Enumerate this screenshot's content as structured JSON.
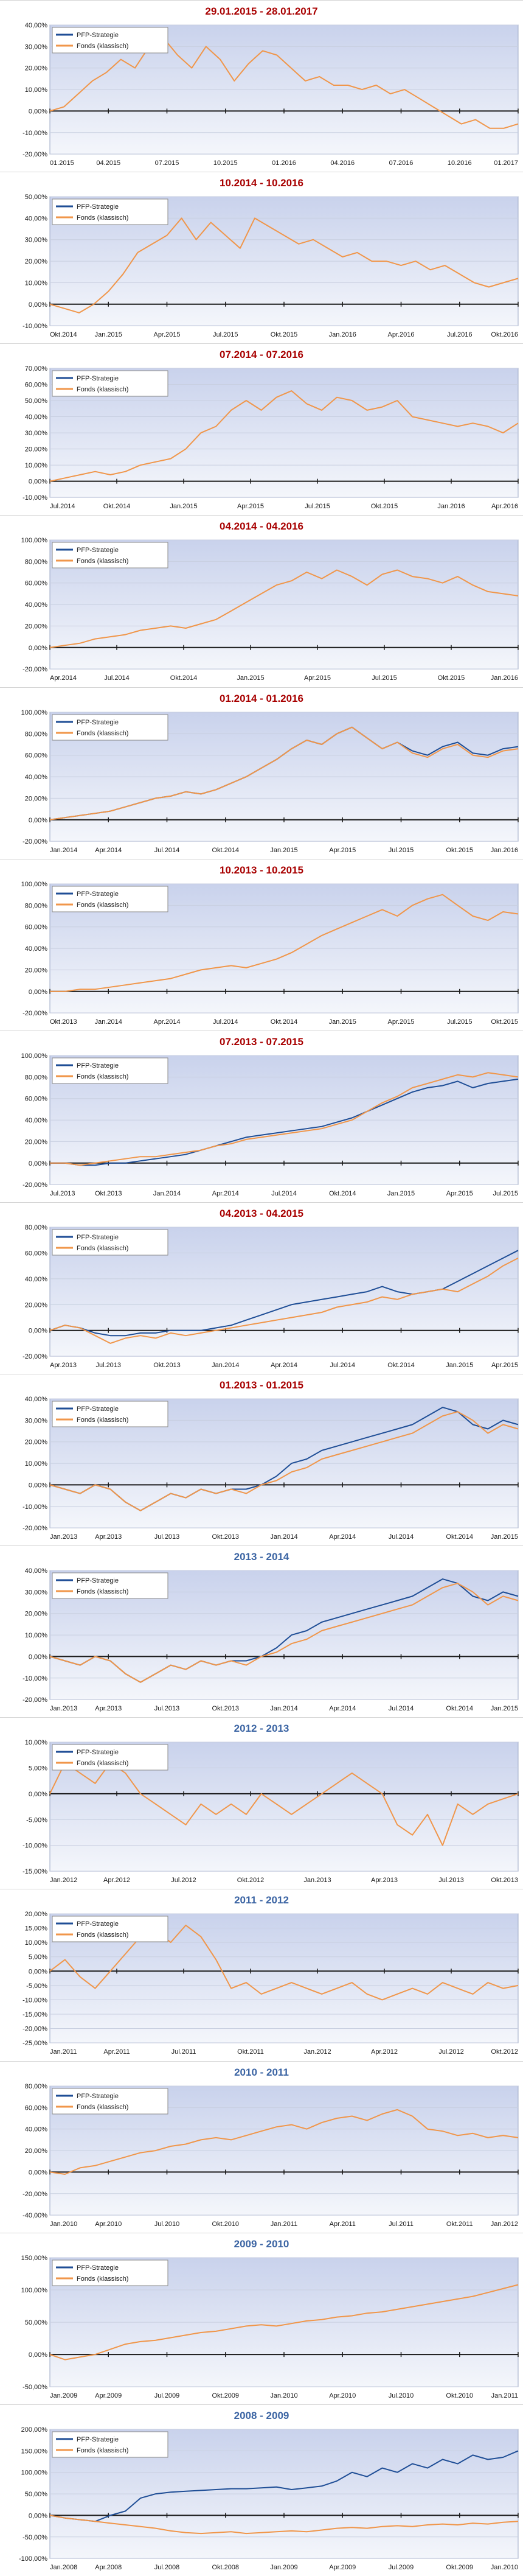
{
  "colors": {
    "recent_title": "#a80000",
    "year_title": "#3b64a3",
    "pfp": "#1f4e96",
    "fonds": "#f0964a",
    "plot_top": "#c9d2ec",
    "plot_bottom": "#f4f6fb"
  },
  "legend_labels": [
    "PFP-Strategie",
    "Fonds (klassisch)"
  ],
  "charts": [
    {
      "title": "29.01.2015 - 28.01.2017",
      "title_kind": "recent",
      "type": "line",
      "ylim": [
        -20,
        40
      ],
      "ystep": 10,
      "yticks_fmt": "%",
      "x_labels": [
        "01.2015",
        "04.2015",
        "07.2015",
        "10.2015",
        "01.2016",
        "04.2016",
        "07.2016",
        "10.2016",
        "01.2017"
      ],
      "pfp_visible": false,
      "fonds": [
        0,
        2,
        8,
        14,
        18,
        24,
        20,
        30,
        34,
        26,
        20,
        30,
        24,
        14,
        22,
        28,
        26,
        20,
        14,
        16,
        12,
        12,
        10,
        12,
        8,
        10,
        6,
        2,
        -2,
        -6,
        -4,
        -8,
        -8,
        -6
      ],
      "pfp": []
    },
    {
      "title": "10.2014 - 10.2016",
      "title_kind": "recent",
      "type": "line",
      "ylim": [
        -10,
        50
      ],
      "ystep": 10,
      "yticks_fmt": "%",
      "x_labels": [
        "Okt.2014",
        "Jan.2015",
        "Apr.2015",
        "Jul.2015",
        "Okt.2015",
        "Jan.2016",
        "Apr.2016",
        "Jul.2016",
        "Okt.2016"
      ],
      "pfp_visible": false,
      "fonds": [
        0,
        -2,
        -4,
        0,
        6,
        14,
        24,
        28,
        32,
        40,
        30,
        38,
        32,
        26,
        40,
        36,
        32,
        28,
        30,
        26,
        22,
        24,
        20,
        20,
        18,
        20,
        16,
        18,
        14,
        10,
        8,
        10,
        12
      ],
      "pfp": []
    },
    {
      "title": "07.2014 - 07.2016",
      "title_kind": "recent",
      "type": "line",
      "ylim": [
        -10,
        70
      ],
      "ystep": 10,
      "yticks_fmt": "%",
      "x_labels": [
        "Jul.2014",
        "Okt.2014",
        "Jan.2015",
        "Apr.2015",
        "Jul.2015",
        "Okt.2015",
        "Jan.2016",
        "Apr.2016"
      ],
      "pfp_visible": false,
      "fonds": [
        0,
        2,
        4,
        6,
        4,
        6,
        10,
        12,
        14,
        20,
        30,
        34,
        44,
        50,
        44,
        52,
        56,
        48,
        44,
        52,
        50,
        44,
        46,
        50,
        40,
        38,
        36,
        34,
        36,
        34,
        30,
        36
      ],
      "pfp": []
    },
    {
      "title": "04.2014 - 04.2016",
      "title_kind": "recent",
      "type": "line",
      "ylim": [
        -20,
        100
      ],
      "ystep": 20,
      "yticks_fmt": "%",
      "x_labels": [
        "Apr.2014",
        "Jul.2014",
        "Okt.2014",
        "Jan.2015",
        "Apr.2015",
        "Jul.2015",
        "Okt.2015",
        "Jan.2016"
      ],
      "pfp_visible": false,
      "fonds": [
        0,
        2,
        4,
        8,
        10,
        12,
        16,
        18,
        20,
        18,
        22,
        26,
        34,
        42,
        50,
        58,
        62,
        70,
        64,
        72,
        66,
        58,
        68,
        72,
        66,
        64,
        60,
        66,
        58,
        52,
        50,
        48
      ],
      "pfp": []
    },
    {
      "title": "01.2014 - 01.2016",
      "title_kind": "recent",
      "type": "line",
      "ylim": [
        -20,
        100
      ],
      "ystep": 20,
      "yticks_fmt": "%",
      "x_labels": [
        "Jan.2014",
        "Apr.2014",
        "Jul.2014",
        "Okt.2014",
        "Jan.2015",
        "Apr.2015",
        "Jul.2015",
        "Okt.2015",
        "Jan.2016"
      ],
      "pfp_visible": true,
      "fonds": [
        0,
        2,
        4,
        6,
        8,
        12,
        16,
        20,
        22,
        26,
        24,
        28,
        34,
        40,
        48,
        56,
        66,
        74,
        70,
        80,
        86,
        76,
        66,
        72,
        62,
        58,
        66,
        70,
        60,
        58,
        64,
        66
      ],
      "pfp": [
        0,
        2,
        4,
        6,
        8,
        12,
        16,
        20,
        22,
        26,
        24,
        28,
        34,
        40,
        48,
        56,
        66,
        74,
        70,
        80,
        86,
        76,
        66,
        72,
        64,
        60,
        68,
        72,
        62,
        60,
        66,
        68
      ]
    },
    {
      "title": "10.2013 - 10.2015",
      "title_kind": "recent",
      "type": "line",
      "ylim": [
        -20,
        100
      ],
      "ystep": 20,
      "yticks_fmt": "%",
      "x_labels": [
        "Okt.2013",
        "Jan.2014",
        "Apr.2014",
        "Jul.2014",
        "Okt.2014",
        "Jan.2015",
        "Apr.2015",
        "Jul.2015",
        "Okt.2015"
      ],
      "pfp_visible": false,
      "fonds": [
        0,
        0,
        2,
        2,
        4,
        6,
        8,
        10,
        12,
        16,
        20,
        22,
        24,
        22,
        26,
        30,
        36,
        44,
        52,
        58,
        64,
        70,
        76,
        70,
        80,
        86,
        90,
        80,
        70,
        66,
        74,
        72
      ],
      "pfp": []
    },
    {
      "title": "07.2013 - 07.2015",
      "title_kind": "recent",
      "type": "line",
      "ylim": [
        -20,
        100
      ],
      "ystep": 20,
      "yticks_fmt": "%",
      "x_labels": [
        "Jul.2013",
        "Okt.2013",
        "Jan.2014",
        "Apr.2014",
        "Jul.2014",
        "Okt.2014",
        "Jan.2015",
        "Apr.2015",
        "Jul.2015"
      ],
      "pfp_visible": true,
      "fonds": [
        0,
        0,
        -2,
        0,
        2,
        4,
        6,
        6,
        8,
        10,
        12,
        16,
        18,
        22,
        24,
        26,
        28,
        30,
        32,
        36,
        40,
        48,
        56,
        62,
        70,
        74,
        78,
        82,
        80,
        84,
        82,
        80
      ],
      "pfp": [
        0,
        0,
        -2,
        -2,
        0,
        0,
        2,
        4,
        6,
        8,
        12,
        16,
        20,
        24,
        26,
        28,
        30,
        32,
        34,
        38,
        42,
        48,
        54,
        60,
        66,
        70,
        72,
        76,
        70,
        74,
        76,
        78
      ]
    },
    {
      "title": "04.2013 - 04.2015",
      "title_kind": "recent",
      "type": "line",
      "ylim": [
        -20,
        80
      ],
      "ystep": 20,
      "yticks_fmt": "%",
      "x_labels": [
        "Apr.2013",
        "Jul.2013",
        "Okt.2013",
        "Jan.2014",
        "Apr.2014",
        "Jul.2014",
        "Okt.2014",
        "Jan.2015",
        "Apr.2015"
      ],
      "pfp_visible": true,
      "fonds": [
        0,
        4,
        2,
        -4,
        -10,
        -6,
        -4,
        -6,
        -2,
        -4,
        -2,
        0,
        2,
        4,
        6,
        8,
        10,
        12,
        14,
        18,
        20,
        22,
        26,
        24,
        28,
        30,
        32,
        30,
        36,
        42,
        50,
        56
      ],
      "pfp": [
        0,
        4,
        2,
        -2,
        -4,
        -4,
        -2,
        -2,
        0,
        0,
        0,
        2,
        4,
        8,
        12,
        16,
        20,
        22,
        24,
        26,
        28,
        30,
        34,
        30,
        28,
        30,
        32,
        38,
        44,
        50,
        56,
        62
      ]
    },
    {
      "title": "01.2013 - 01.2015",
      "title_kind": "recent",
      "type": "line",
      "ylim": [
        -20,
        40
      ],
      "ystep": 10,
      "yticks_fmt": "%",
      "x_labels": [
        "Jan.2013",
        "Apr.2013",
        "Jul.2013",
        "Okt.2013",
        "Jan.2014",
        "Apr.2014",
        "Jul.2014",
        "Okt.2014",
        "Jan.2015"
      ],
      "pfp_visible": true,
      "fonds": [
        0,
        -2,
        -4,
        0,
        -2,
        -8,
        -12,
        -8,
        -4,
        -6,
        -2,
        -4,
        -2,
        -4,
        0,
        2,
        6,
        8,
        12,
        14,
        16,
        18,
        20,
        22,
        24,
        28,
        32,
        34,
        30,
        24,
        28,
        26
      ],
      "pfp": [
        0,
        -2,
        -4,
        0,
        -2,
        -8,
        -12,
        -8,
        -4,
        -6,
        -2,
        -4,
        -2,
        -2,
        0,
        4,
        10,
        12,
        16,
        18,
        20,
        22,
        24,
        26,
        28,
        32,
        36,
        34,
        28,
        26,
        30,
        28
      ]
    },
    {
      "title": "2013 - 2014",
      "title_kind": "year",
      "type": "line",
      "ylim": [
        -20,
        40
      ],
      "ystep": 10,
      "yticks_fmt": "%",
      "x_labels": [
        "Jan.2013",
        "Apr.2013",
        "Jul.2013",
        "Okt.2013",
        "Jan.2014",
        "Apr.2014",
        "Jul.2014",
        "Okt.2014",
        "Jan.2015"
      ],
      "pfp_visible": true,
      "fonds": [
        0,
        -2,
        -4,
        0,
        -2,
        -8,
        -12,
        -8,
        -4,
        -6,
        -2,
        -4,
        -2,
        -4,
        0,
        2,
        6,
        8,
        12,
        14,
        16,
        18,
        20,
        22,
        24,
        28,
        32,
        34,
        30,
        24,
        28,
        26
      ],
      "pfp": [
        0,
        -2,
        -4,
        0,
        -2,
        -8,
        -12,
        -8,
        -4,
        -6,
        -2,
        -4,
        -2,
        -2,
        0,
        4,
        10,
        12,
        16,
        18,
        20,
        22,
        24,
        26,
        28,
        32,
        36,
        34,
        28,
        26,
        30,
        28
      ]
    },
    {
      "title": "2012 - 2013",
      "title_kind": "year",
      "type": "line",
      "ylim": [
        -15,
        10
      ],
      "ystep": 5,
      "yticks_fmt": "%",
      "x_labels": [
        "Jan.2012",
        "Apr.2012",
        "Jul.2012",
        "Okt.2012",
        "Jan.2013",
        "Apr.2013",
        "Jul.2013",
        "Okt.2013"
      ],
      "pfp_visible": false,
      "fonds": [
        0,
        6,
        4,
        2,
        6,
        4,
        0,
        -2,
        -4,
        -6,
        -2,
        -4,
        -2,
        -4,
        0,
        -2,
        -4,
        -2,
        0,
        2,
        4,
        2,
        0,
        -6,
        -8,
        -4,
        -10,
        -2,
        -4,
        -2,
        -1,
        0
      ],
      "pfp": []
    },
    {
      "title": "2011 - 2012",
      "title_kind": "year",
      "type": "line",
      "ylim": [
        -25,
        20
      ],
      "ystep": 5,
      "yticks_fmt": "%",
      "x_labels": [
        "Jan.2011",
        "Apr.2011",
        "Jul.2011",
        "Okt.2011",
        "Jan.2012",
        "Apr.2012",
        "Jul.2012",
        "Okt.2012"
      ],
      "pfp_visible": false,
      "fonds": [
        0,
        4,
        -2,
        -6,
        0,
        6,
        12,
        14,
        10,
        16,
        12,
        4,
        -6,
        -4,
        -8,
        -6,
        -4,
        -6,
        -8,
        -6,
        -4,
        -8,
        -10,
        -8,
        -6,
        -8,
        -4,
        -6,
        -8,
        -4,
        -6,
        -5
      ],
      "pfp": []
    },
    {
      "title": "2010 - 2011",
      "title_kind": "year",
      "type": "line",
      "ylim": [
        -40,
        80
      ],
      "ystep": 20,
      "yticks_fmt": "%",
      "x_labels": [
        "Jan.2010",
        "Apr.2010",
        "Jul.2010",
        "Okt.2010",
        "Jan.2011",
        "Apr.2011",
        "Jul.2011",
        "Okt.2011",
        "Jan.2012"
      ],
      "pfp_visible": false,
      "fonds": [
        0,
        -2,
        4,
        6,
        10,
        14,
        18,
        20,
        24,
        26,
        30,
        32,
        30,
        34,
        38,
        42,
        44,
        40,
        46,
        50,
        52,
        48,
        54,
        58,
        52,
        40,
        38,
        34,
        36,
        32,
        34,
        32
      ],
      "pfp": []
    },
    {
      "title": "2009 - 2010",
      "title_kind": "year",
      "type": "line",
      "ylim": [
        -50,
        150
      ],
      "ystep": 50,
      "yticks_fmt": "%",
      "x_labels": [
        "Jan.2009",
        "Apr.2009",
        "Jul.2009",
        "Okt.2009",
        "Jan.2010",
        "Apr.2010",
        "Jul.2010",
        "Okt.2010",
        "Jan.2011"
      ],
      "pfp_visible": false,
      "fonds": [
        0,
        -8,
        -4,
        0,
        8,
        16,
        20,
        22,
        26,
        30,
        34,
        36,
        40,
        44,
        46,
        44,
        48,
        52,
        54,
        58,
        60,
        64,
        66,
        70,
        74,
        78,
        82,
        86,
        90,
        96,
        102,
        108
      ],
      "pfp": []
    },
    {
      "title": "2008 - 2009",
      "title_kind": "year",
      "type": "line",
      "ylim": [
        -100,
        200
      ],
      "ystep": 50,
      "yticks_fmt": "%",
      "x_labels": [
        "Jan.2008",
        "Apr.2008",
        "Jul.2008",
        "Okt.2008",
        "Jan.2009",
        "Apr.2009",
        "Jul.2009",
        "Okt.2009",
        "Jan.2010"
      ],
      "pfp_visible": true,
      "fonds": [
        0,
        -6,
        -10,
        -14,
        -18,
        -22,
        -26,
        -30,
        -36,
        -40,
        -42,
        -40,
        -38,
        -42,
        -40,
        -38,
        -36,
        -38,
        -34,
        -30,
        -28,
        -30,
        -26,
        -24,
        -26,
        -22,
        -20,
        -22,
        -18,
        -20,
        -16,
        -14
      ],
      "pfp": [
        0,
        -6,
        -10,
        -14,
        0,
        10,
        40,
        50,
        54,
        56,
        58,
        60,
        62,
        62,
        64,
        66,
        60,
        64,
        68,
        80,
        100,
        90,
        110,
        100,
        120,
        110,
        130,
        120,
        140,
        130,
        135,
        150
      ]
    }
  ]
}
